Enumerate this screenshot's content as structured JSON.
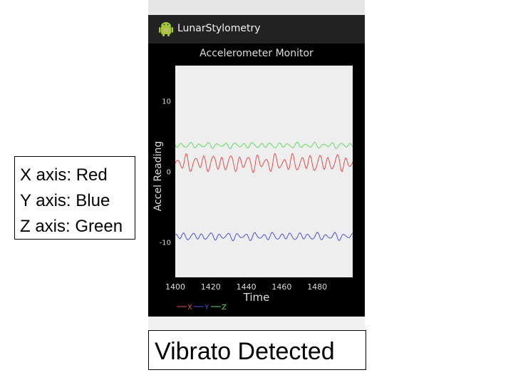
{
  "app": {
    "title": "LunarStylometry",
    "icon": "android-robot-icon"
  },
  "legend_box": {
    "lines": [
      "X axis: Red",
      "Y axis: Blue",
      "Z axis: Green"
    ]
  },
  "status": {
    "text": "Vibrato Detected"
  },
  "colors": {
    "x_series": "#e05050",
    "y_series": "#5050d8",
    "z_series": "#60dd60",
    "plot_bg": "#eeeeee",
    "axis_text": "#dddddd"
  },
  "chart_data": {
    "type": "line",
    "title": "Accelerometer Monitor",
    "xlabel": "Time",
    "ylabel": "Accel Reading",
    "xlim": [
      1400,
      1500
    ],
    "ylim": [
      -15,
      15
    ],
    "xticks": [
      1400,
      1420,
      1440,
      1460,
      1480
    ],
    "yticks": [
      10,
      0,
      -10
    ],
    "grid": false,
    "legend_position": "bottom-left",
    "legend": [
      "X",
      "Y",
      "Z"
    ],
    "series": [
      {
        "name": "X",
        "color": "#e05050",
        "center": 1.2,
        "amplitude": 0.9,
        "period": 5
      },
      {
        "name": "Y",
        "color": "#5050d8",
        "center": -9.2,
        "amplitude": 0.4,
        "period": 5
      },
      {
        "name": "Z",
        "color": "#60dd60",
        "center": 3.7,
        "amplitude": 0.3,
        "period": 5
      }
    ]
  }
}
